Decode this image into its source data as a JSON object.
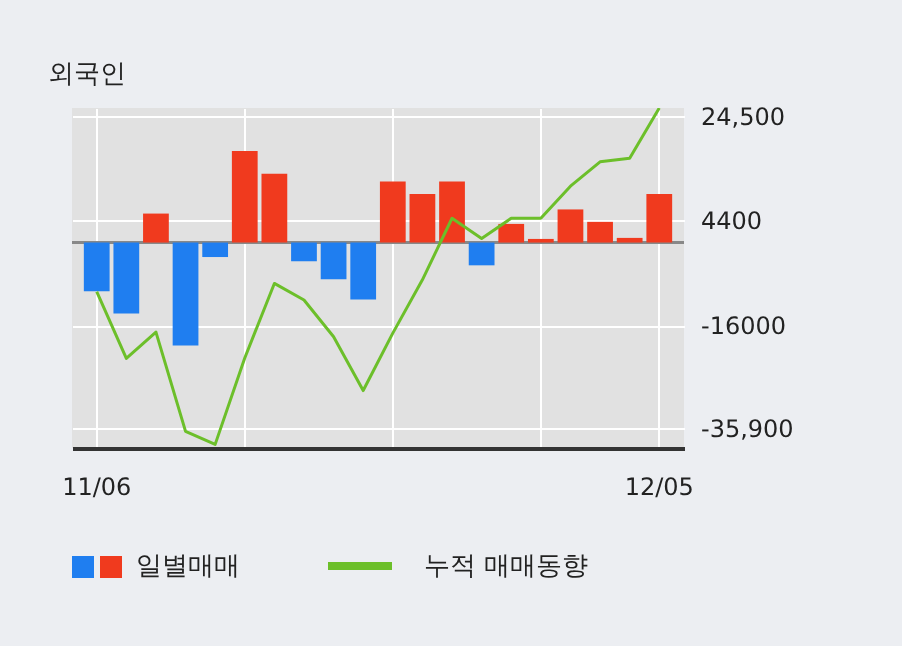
{
  "chart_data": {
    "type": "bar",
    "title": "외국인",
    "categories": [
      "11/06",
      null,
      null,
      null,
      null,
      null,
      null,
      null,
      null,
      null,
      null,
      null,
      null,
      null,
      null,
      null,
      null,
      null,
      null,
      "12/05"
    ],
    "series": [
      {
        "name": "일별매매",
        "colors": [
          "#1f7ef0",
          "#1f7ef0",
          "#f03a1e",
          "#1f7ef0",
          "#1f7ef0",
          "#f03a1e",
          "#f03a1e",
          "#1f7ef0",
          "#1f7ef0",
          "#1f7ef0",
          "#f03a1e",
          "#f03a1e",
          "#f03a1e",
          "#1f7ef0",
          "#f03a1e",
          "#f03a1e",
          "#f03a1e",
          "#f03a1e",
          "#f03a1e",
          "#f03a1e"
        ],
        "values": [
          -9400,
          -13700,
          5600,
          -19900,
          -2800,
          17700,
          13300,
          -3600,
          -7100,
          -11000,
          11800,
          9400,
          11800,
          -4400,
          3600,
          700,
          6400,
          4000,
          900,
          9400
        ]
      },
      {
        "name": "누적 매매동향",
        "type": "line",
        "color": "#6cbf2a",
        "values": [
          -9500,
          -22400,
          -17300,
          -36500,
          -39000,
          -22300,
          -7900,
          -11100,
          -18200,
          -28600,
          -17500,
          -7200,
          4700,
          800,
          4700,
          4700,
          10900,
          15600,
          16300,
          26000
        ]
      }
    ],
    "ylim": [
      -39700,
      26000
    ],
    "yticks": [
      {
        "value": 24500,
        "label": "24,500"
      },
      4400,
      -16000,
      {
        "value": -35900,
        "label": "-35,900"
      }
    ],
    "ref_lines": [
      {
        "axis": "y",
        "value": 0,
        "color": "#888888"
      }
    ],
    "grid": true,
    "legend": "bottom"
  }
}
